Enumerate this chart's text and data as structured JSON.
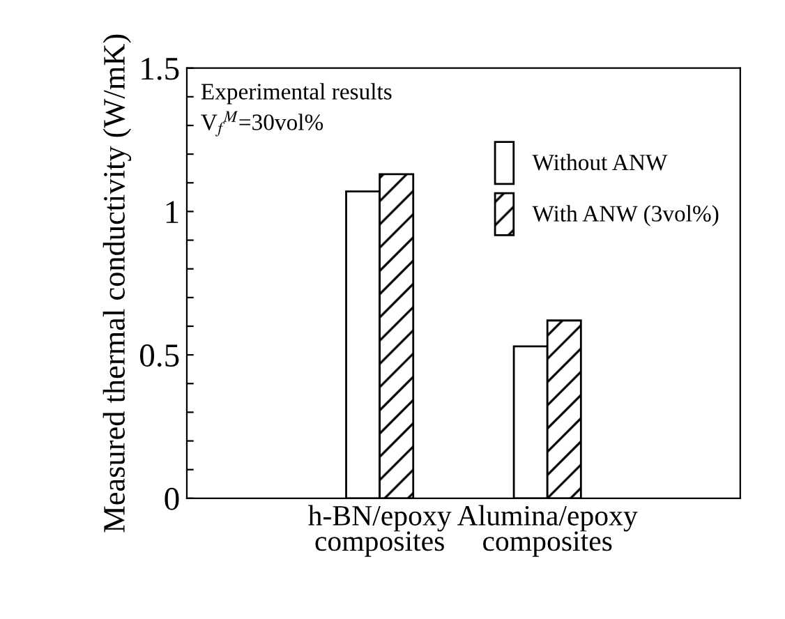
{
  "chart_data": {
    "type": "bar",
    "ylabel": "Measured thermal conductivity (W/mK)",
    "categories": [
      "h-BN/epoxy\ncomposites",
      "Alumina/epoxy\ncomposites"
    ],
    "series": [
      {
        "name": "Without ANW",
        "color": "#ffffff",
        "values": [
          1.07,
          0.53
        ]
      },
      {
        "name": "With ANW (3vol%)",
        "color": "#000000",
        "values": [
          1.13,
          0.62
        ]
      }
    ],
    "ylim": [
      0,
      1.5
    ],
    "yticks": [
      0,
      {
        "value": 0.1,
        "label": null
      },
      {
        "value": 0.2,
        "label": null
      },
      {
        "value": 0.3,
        "label": null
      },
      {
        "value": 0.4,
        "label": null
      },
      0.5,
      {
        "value": 0.6,
        "label": null
      },
      {
        "value": 0.7,
        "label": null
      },
      {
        "value": 0.8,
        "label": null
      },
      {
        "value": 0.9,
        "label": null
      },
      1,
      {
        "value": 1.1,
        "label": null
      },
      {
        "value": 1.2,
        "label": null
      },
      {
        "value": 1.3,
        "label": null
      },
      {
        "value": 1.4,
        "label": null
      },
      1.5
    ],
    "annotations": [
      "Experimental results",
      "V$_{f}$$^{M}$=30vol%"
    ],
    "legend": "right",
    "grid": false
  }
}
